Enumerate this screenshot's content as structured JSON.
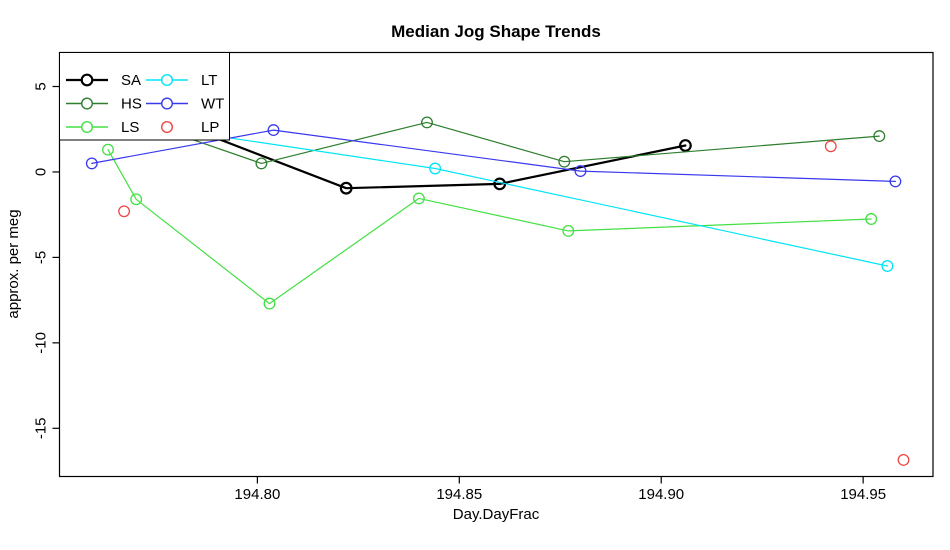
{
  "title": "Median Jog Shape Trends",
  "chart_data": {
    "type": "line",
    "title": "Median Jog Shape Trends",
    "xlabel": "Day.DayFrac",
    "ylabel": "approx. per meg",
    "xlim": [
      194.751,
      194.9673
    ],
    "ylim": [
      -17.82,
      6.99
    ],
    "grid": false,
    "background": "#ffffff",
    "axis_color": "#000000",
    "legend_position": "topleft",
    "legend_columns": 2,
    "x_ticks": [
      {
        "v": 194.8,
        "label": "194.80"
      },
      {
        "v": 194.85,
        "label": "194.85"
      },
      {
        "v": 194.9,
        "label": "194.90"
      },
      {
        "v": 194.95,
        "label": "194.95"
      }
    ],
    "y_ticks": [
      {
        "v": 5,
        "label": "5"
      },
      {
        "v": 0,
        "label": "0"
      },
      {
        "v": -5,
        "label": "-5"
      },
      {
        "v": -10,
        "label": "-10"
      },
      {
        "v": -15,
        "label": "-15"
      }
    ],
    "series": [
      {
        "name": "SA",
        "color": "#000000",
        "line": true,
        "line_width": 2.2,
        "points": [
          [
            194.783,
            2.6
          ],
          [
            194.822,
            -0.95
          ],
          [
            194.86,
            -0.7
          ],
          [
            194.906,
            1.55
          ]
        ]
      },
      {
        "name": "HS",
        "color": "#2d7f2d",
        "line": true,
        "line_width": 1.2,
        "points": [
          [
            194.779,
            2.3
          ],
          [
            194.801,
            0.5
          ],
          [
            194.842,
            2.9
          ],
          [
            194.876,
            0.6
          ],
          [
            194.954,
            2.1
          ]
        ]
      },
      {
        "name": "LS",
        "color": "#43e043",
        "line": true,
        "line_width": 1.2,
        "points": [
          [
            194.763,
            1.3
          ],
          [
            194.77,
            -1.6
          ],
          [
            194.803,
            -7.7
          ],
          [
            194.84,
            -1.55
          ],
          [
            194.877,
            -3.45
          ],
          [
            194.952,
            -2.75
          ]
        ]
      },
      {
        "name": "LT",
        "color": "#00e5f5",
        "line": true,
        "line_width": 1.2,
        "points": [
          [
            194.783,
            2.35
          ],
          [
            194.844,
            0.2
          ],
          [
            194.956,
            -5.5
          ]
        ]
      },
      {
        "name": "WT",
        "color": "#3939ef",
        "line": true,
        "line_width": 1.2,
        "points": [
          [
            194.759,
            0.5
          ],
          [
            194.804,
            2.45
          ],
          [
            194.88,
            0.05
          ],
          [
            194.958,
            -0.55
          ]
        ]
      },
      {
        "name": "LP",
        "color": "#ef4545",
        "line": false,
        "line_width": 1.2,
        "points": [
          [
            194.767,
            -2.3
          ],
          [
            194.942,
            1.5
          ],
          [
            194.96,
            -16.85
          ]
        ]
      }
    ]
  }
}
